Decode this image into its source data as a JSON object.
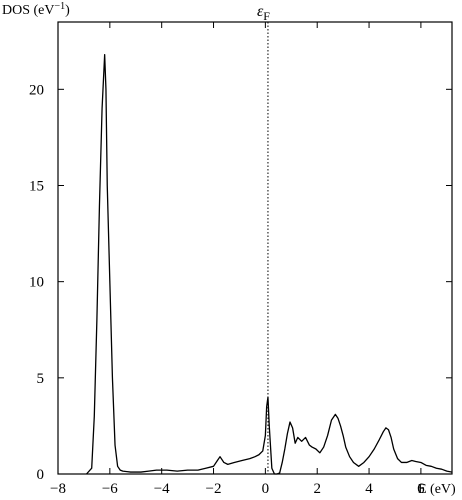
{
  "chart_data": {
    "type": "line",
    "title": "",
    "ylabel": "DOS (eV",
    "ylabel_sup": "−1",
    "ylabel_close": ")",
    "xlabel": "E (eV)",
    "xlim": [
      -8,
      7.2
    ],
    "ylim": [
      0,
      23.5
    ],
    "x_ticks": [
      -8,
      -6,
      -4,
      -2,
      0,
      2,
      4,
      6
    ],
    "x_tick_labels": [
      "−8",
      "−6",
      "−4",
      "−2",
      "0",
      "2",
      "4",
      "6"
    ],
    "y_ticks": [
      0,
      5,
      10,
      15,
      20
    ],
    "y_tick_labels": [
      "0",
      "5",
      "10",
      "15",
      "20"
    ],
    "grid": false,
    "annotations": [
      {
        "text": "ε",
        "subscript": "F",
        "x": 0.1,
        "style": "dotted-vertical-line"
      }
    ],
    "series": [
      {
        "color": "#000000",
        "x": [
          -6.9,
          -6.7,
          -6.6,
          -6.5,
          -6.4,
          -6.3,
          -6.2,
          -6.15,
          -6.1,
          -6.0,
          -5.9,
          -5.8,
          -5.7,
          -5.6,
          -5.5,
          -5.2,
          -4.8,
          -4.5,
          -4.2,
          -3.8,
          -3.4,
          -3.0,
          -2.6,
          -2.3,
          -2.0,
          -1.85,
          -1.75,
          -1.6,
          -1.45,
          -1.2,
          -0.9,
          -0.6,
          -0.4,
          -0.25,
          -0.1,
          0.0,
          0.05,
          0.1,
          0.15,
          0.25,
          0.35,
          0.45,
          0.55,
          0.65,
          0.75,
          0.85,
          0.95,
          1.05,
          1.15,
          1.25,
          1.4,
          1.55,
          1.7,
          1.8,
          1.95,
          2.1,
          2.25,
          2.4,
          2.55,
          2.7,
          2.8,
          2.9,
          3.0,
          3.1,
          3.25,
          3.4,
          3.6,
          3.8,
          4.0,
          4.2,
          4.4,
          4.55,
          4.65,
          4.75,
          4.85,
          4.95,
          5.1,
          5.25,
          5.45,
          5.65,
          5.8,
          6.0,
          6.2,
          6.4,
          6.6,
          6.8,
          7.0,
          7.2
        ],
        "y": [
          0.0,
          0.3,
          3.0,
          8.0,
          14.0,
          19.0,
          21.8,
          20.0,
          15.0,
          10.0,
          5.0,
          1.5,
          0.4,
          0.2,
          0.15,
          0.1,
          0.1,
          0.15,
          0.2,
          0.2,
          0.15,
          0.2,
          0.2,
          0.3,
          0.4,
          0.7,
          0.9,
          0.6,
          0.5,
          0.6,
          0.7,
          0.8,
          0.9,
          1.0,
          1.2,
          2.0,
          3.5,
          4.0,
          2.5,
          0.3,
          0.0,
          0.0,
          0.05,
          0.6,
          1.3,
          2.1,
          2.7,
          2.4,
          1.6,
          1.9,
          1.7,
          1.9,
          1.5,
          1.4,
          1.3,
          1.1,
          1.4,
          2.0,
          2.8,
          3.1,
          2.9,
          2.5,
          2.0,
          1.4,
          0.9,
          0.6,
          0.4,
          0.6,
          0.9,
          1.3,
          1.8,
          2.2,
          2.4,
          2.3,
          1.9,
          1.3,
          0.8,
          0.6,
          0.6,
          0.7,
          0.65,
          0.6,
          0.45,
          0.4,
          0.3,
          0.25,
          0.15,
          0.1
        ]
      }
    ]
  }
}
